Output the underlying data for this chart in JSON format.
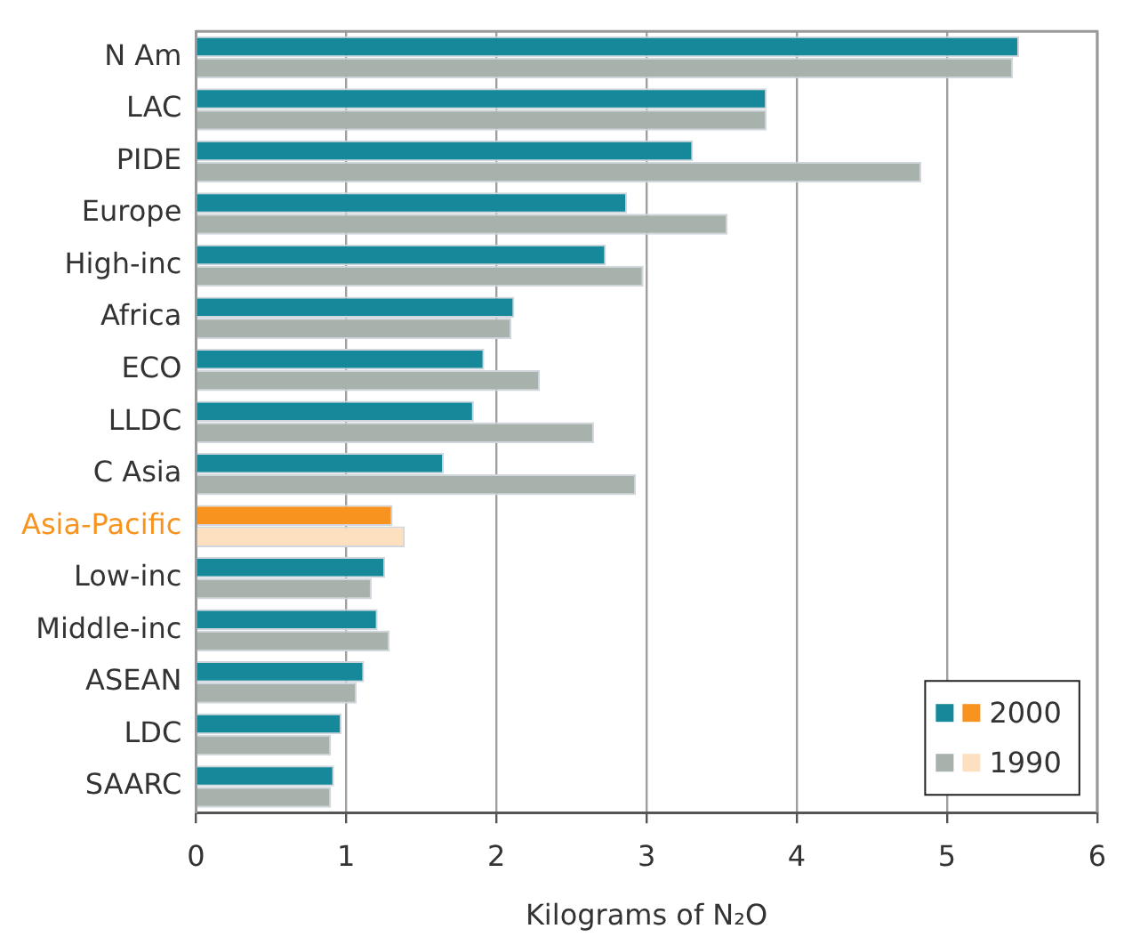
{
  "chart_data": {
    "type": "bar",
    "orientation": "horizontal",
    "xlabel": "Kilograms of N₂O",
    "categories": [
      "N Am",
      "LAC",
      "PIDE",
      "Europe",
      "High-inc",
      "Africa",
      "ECO",
      "LLDC",
      "C Asia",
      "Asia-Pacific",
      "Low-inc",
      "Middle-inc",
      "ASEAN",
      "LDC",
      "SAARC"
    ],
    "series": [
      {
        "name": "2000",
        "color": "#15899a",
        "colors": [
          "#15899a",
          "#15899a",
          "#15899a",
          "#15899a",
          "#15899a",
          "#15899a",
          "#15899a",
          "#15899a",
          "#15899a",
          "#f7931e",
          "#15899a",
          "#15899a",
          "#15899a",
          "#15899a",
          "#15899a"
        ],
        "values": [
          5.48,
          3.8,
          3.31,
          2.87,
          2.73,
          2.12,
          1.92,
          1.85,
          1.65,
          1.31,
          1.26,
          1.21,
          1.12,
          0.97,
          0.92
        ]
      },
      {
        "name": "1990",
        "color": "#a7b2ac",
        "colors": [
          "#a7b2ac",
          "#a7b2ac",
          "#a7b2ac",
          "#a7b2ac",
          "#a7b2ac",
          "#a7b2ac",
          "#a7b2ac",
          "#a7b2ac",
          "#a7b2ac",
          "#fde0c0",
          "#a7b2ac",
          "#a7b2ac",
          "#a7b2ac",
          "#a7b2ac",
          "#a7b2ac"
        ],
        "values": [
          5.44,
          3.8,
          4.83,
          3.54,
          2.98,
          2.1,
          2.29,
          2.65,
          2.93,
          1.39,
          1.17,
          1.29,
          1.07,
          0.9,
          0.9
        ]
      }
    ],
    "xlim": [
      0,
      6
    ],
    "xticks": [
      0,
      1,
      2,
      3,
      4,
      5,
      6
    ],
    "grid": "x",
    "legend": "bottom right"
  }
}
